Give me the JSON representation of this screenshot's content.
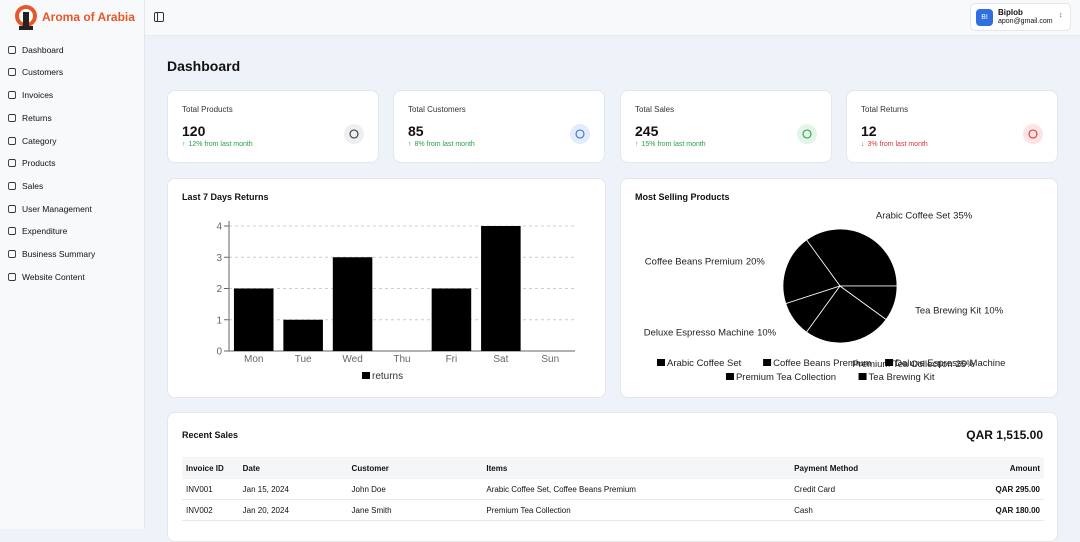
{
  "brand": "Aroma of Arabia",
  "nav": [
    "Dashboard",
    "Customers",
    "Invoices",
    "Returns",
    "Category",
    "Products",
    "Sales",
    "User Management",
    "Expenditure",
    "Business Summary",
    "Website Content"
  ],
  "user": {
    "initials": "BI",
    "name": "Biplob",
    "email": "apon@gmail.com"
  },
  "page_title": "Dashboard",
  "stats": [
    {
      "label": "Total Products",
      "value": 120,
      "change": "12% from last month"
    },
    {
      "label": "Total Customers",
      "value": 85,
      "change": "8% from last month"
    },
    {
      "label": "Total Sales",
      "value": 245,
      "change": "15% from last month"
    },
    {
      "label": "Total Returns",
      "value": 12,
      "change": "3% from last month"
    }
  ],
  "chart_data": [
    {
      "type": "bar",
      "title": "Last 7 Days Returns",
      "categories": [
        "Mon",
        "Tue",
        "Wed",
        "Thu",
        "Fri",
        "Sat",
        "Sun"
      ],
      "series": [
        {
          "name": "returns",
          "color": "#000000",
          "values": [
            2,
            1,
            3,
            0,
            2,
            4,
            0
          ]
        }
      ],
      "ylim": [
        0,
        4
      ],
      "yticks": [
        0,
        1,
        2,
        3,
        4
      ],
      "grid": true
    },
    {
      "type": "pie",
      "title": "Most Selling Products",
      "categories": [
        "Arabic Coffee Set",
        "Coffee Beans Premium",
        "Deluxe Espresso Machine",
        "Premium Tea Collection",
        "Tea Brewing Kit"
      ],
      "values": [
        35,
        20,
        10,
        25,
        10
      ],
      "value_labels": [
        "35%",
        "20%",
        "10%",
        "25%",
        "10%"
      ],
      "color": "#000000"
    }
  ],
  "recent_sales": {
    "title": "Recent Sales",
    "total": "QAR 1,515.00",
    "columns": [
      "Invoice ID",
      "Date",
      "Customer",
      "Items",
      "Payment Method",
      "Amount"
    ],
    "rows": [
      [
        "INV001",
        "Jan 15, 2024",
        "John Doe",
        "Arabic Coffee Set, Coffee Beans Premium",
        "Credit Card",
        "QAR 295.00"
      ],
      [
        "INV002",
        "Jan 20, 2024",
        "Jane Smith",
        "Premium Tea Collection",
        "Cash",
        "QAR 180.00"
      ]
    ]
  }
}
